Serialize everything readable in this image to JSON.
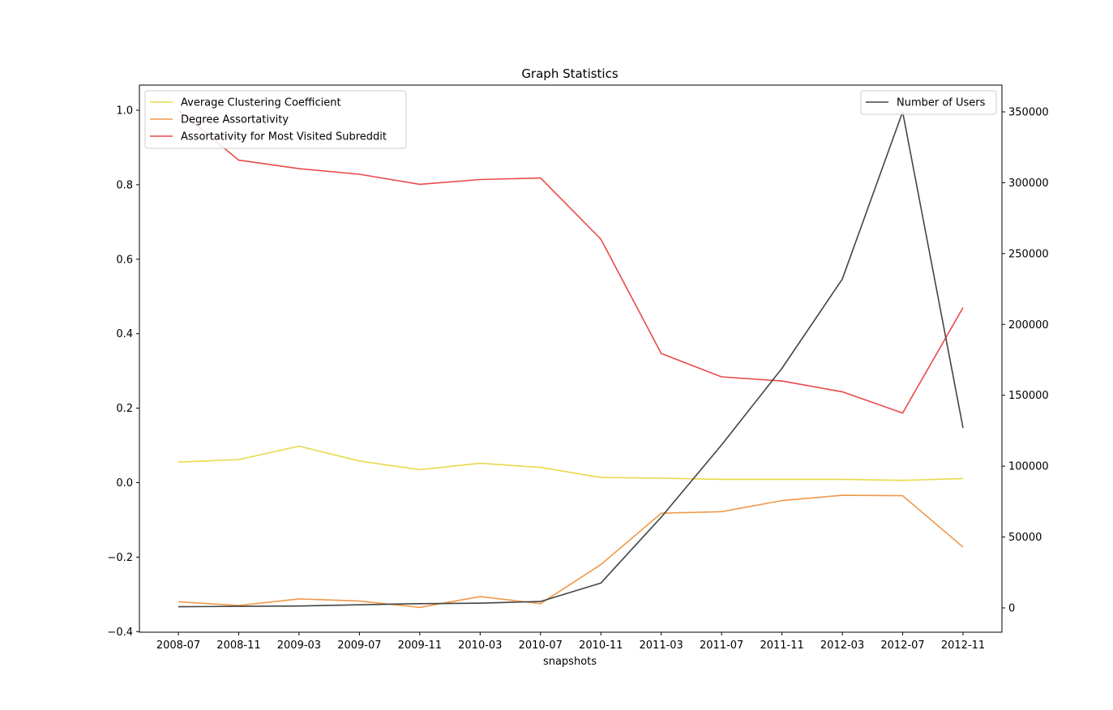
{
  "chart_data": {
    "type": "line",
    "title": "Graph Statistics",
    "xlabel": "snapshots",
    "ylabel": "",
    "ylabel_right": "",
    "categories": [
      "2008-07",
      "2008-11",
      "2009-03",
      "2009-07",
      "2009-11",
      "2010-03",
      "2010-07",
      "2010-11",
      "2011-03",
      "2011-07",
      "2011-11",
      "2012-03",
      "2012-07",
      "2012-11"
    ],
    "ylim": [
      -0.4,
      1.0
    ],
    "y_ticks": [
      "−0.4",
      "−0.2",
      "0.0",
      "0.2",
      "0.4",
      "0.6",
      "0.8",
      "1.0"
    ],
    "ylim_right": [
      -15000,
      350000
    ],
    "y_ticks_right": [
      "0",
      "50000",
      "100000",
      "150000",
      "200000",
      "250000",
      "300000",
      "350000"
    ],
    "grid": false,
    "legend_left": "top-left",
    "legend_right": "top-right",
    "series": [
      {
        "name": "Average Clustering Coefficient",
        "axis": "left",
        "color": "#e8d94a",
        "values": [
          0.055,
          0.062,
          0.098,
          0.058,
          0.035,
          0.052,
          0.041,
          0.014,
          0.012,
          0.009,
          0.009,
          0.009,
          0.006,
          0.011
        ]
      },
      {
        "name": "Degree Assortativity",
        "axis": "left",
        "color": "#f0994a",
        "values": [
          -0.32,
          -0.33,
          -0.312,
          -0.318,
          -0.335,
          -0.306,
          -0.325,
          -0.22,
          -0.082,
          -0.078,
          -0.048,
          -0.034,
          -0.035,
          -0.173
        ]
      },
      {
        "name": "Assortativity for Most Visited Subreddit",
        "axis": "left",
        "color": "#e84a48",
        "values": [
          1.0,
          0.866,
          0.843,
          0.828,
          0.801,
          0.814,
          0.818,
          0.654,
          0.347,
          0.284,
          0.273,
          0.244,
          0.187,
          0.47
        ]
      },
      {
        "name": "Number of Users",
        "axis": "right",
        "color": "#444444",
        "values": [
          800,
          1100,
          1300,
          2200,
          3000,
          3300,
          4500,
          17500,
          64000,
          115000,
          169000,
          232000,
          350000,
          127000
        ]
      }
    ]
  }
}
